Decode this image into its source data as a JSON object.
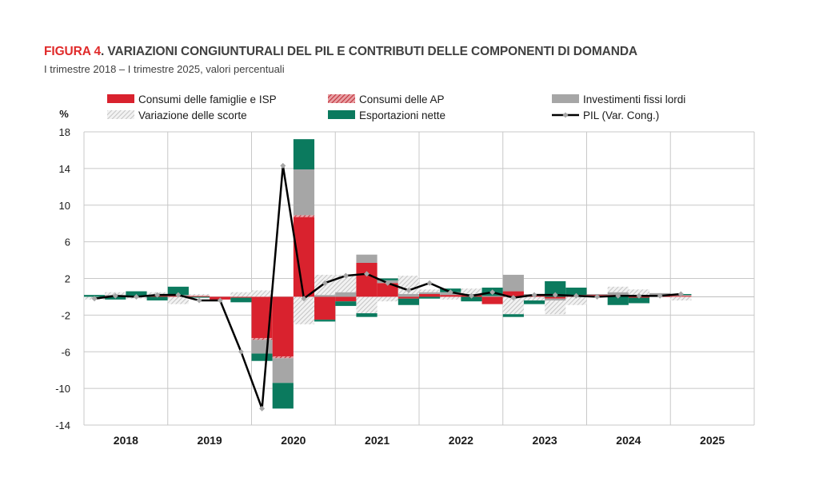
{
  "figure": {
    "label": "FIGURA 4",
    "title": ". VARIAZIONI CONGIUNTURALI DEL PIL E CONTRIBUTI DELLE COMPONENTI DI DOMANDA",
    "subtitle": "I trimestre 2018 – I trimestre 2025, valori percentuali"
  },
  "colors": {
    "title_label": "#e02a2a",
    "consumi_famiglie": "#d9222e",
    "consumi_ap": "#c0303a",
    "investimenti": "#a6a6a6",
    "scorte": "#d0d0d0",
    "esportazioni": "#0b7a5e",
    "pil": "#000000",
    "pil_marker": "#a6a6a6",
    "grid": "#c8c8c8"
  },
  "chart_data": {
    "type": "bar",
    "stacked": true,
    "ylabel": "%",
    "ylim": [
      -14,
      18
    ],
    "yticks": [
      18,
      14,
      10,
      6,
      2,
      -2,
      -6,
      -10,
      -14
    ],
    "grid": true,
    "legend_position": "top",
    "year_labels": [
      "2018",
      "2019",
      "2020",
      "2021",
      "2022",
      "2023",
      "2024",
      "2025"
    ],
    "quarters_per_year": 4,
    "series": [
      {
        "name": "Consumi delle famiglie e ISP",
        "kind": "bar",
        "pattern": "solid",
        "values": [
          0.0,
          0.1,
          0.1,
          0.1,
          0.1,
          0.1,
          -0.3,
          -0.1,
          -4.5,
          -6.5,
          8.7,
          -2.5,
          -0.5,
          3.7,
          1.5,
          -0.2,
          0.3,
          0.2,
          0.2,
          -0.8,
          0.6,
          0.1,
          -0.2,
          0.2,
          0.2,
          0.2,
          -0.1,
          0.2,
          0.1
        ]
      },
      {
        "name": "Consumi delle AP",
        "kind": "bar",
        "pattern": "hatched",
        "values": [
          0.0,
          0.0,
          0.0,
          0.0,
          0.0,
          0.0,
          0.0,
          0.0,
          -0.2,
          -0.2,
          0.2,
          0.0,
          0.0,
          0.0,
          0.0,
          0.0,
          0.0,
          0.0,
          0.0,
          0.0,
          0.0,
          0.0,
          0.0,
          0.0,
          0.0,
          0.0,
          0.0,
          0.0,
          0.0
        ]
      },
      {
        "name": "Investimenti fissi lordi",
        "kind": "bar",
        "pattern": "solid",
        "values": [
          0.0,
          0.1,
          0.0,
          0.1,
          0.1,
          0.0,
          0.0,
          0.0,
          -1.5,
          -2.7,
          5.0,
          0.2,
          0.5,
          0.9,
          0.3,
          0.3,
          0.2,
          0.3,
          0.1,
          0.1,
          1.8,
          0.2,
          -0.2,
          0.0,
          0.1,
          0.3,
          0.2,
          0.2,
          0.1
        ]
      },
      {
        "name": "Variazione delle scorte",
        "kind": "bar",
        "pattern": "hatched",
        "values": [
          -0.3,
          0.3,
          -0.2,
          0.3,
          -0.8,
          0.2,
          0.0,
          0.5,
          0.7,
          0.0,
          -3.0,
          2.2,
          1.9,
          -1.8,
          -0.5,
          2.0,
          0.3,
          -0.3,
          0.6,
          0.0,
          -1.9,
          -0.4,
          -1.5,
          -0.9,
          0.0,
          0.6,
          0.6,
          0.0,
          -0.4
        ]
      },
      {
        "name": "Esportazioni nette",
        "kind": "bar",
        "pattern": "solid",
        "values": [
          0.2,
          -0.3,
          0.5,
          -0.4,
          0.9,
          -0.1,
          0.0,
          -0.5,
          -0.8,
          -2.8,
          3.3,
          -0.2,
          -0.5,
          -0.4,
          0.2,
          -0.7,
          -0.2,
          0.4,
          -0.5,
          0.9,
          -0.3,
          -0.4,
          1.7,
          0.8,
          0.0,
          -0.9,
          -0.6,
          0.0,
          0.1
        ]
      },
      {
        "name": "PIL (Var. Cong.)",
        "kind": "line",
        "values": [
          -0.2,
          0.1,
          0.0,
          0.2,
          0.2,
          -0.4,
          -0.4,
          -6.0,
          -12.2,
          14.3,
          -0.2,
          1.5,
          2.3,
          2.5,
          1.5,
          0.7,
          1.5,
          0.5,
          0.1,
          0.5,
          -0.1,
          0.2,
          0.2,
          0.1,
          0.0,
          0.1,
          0.1,
          0.1,
          0.3
        ]
      }
    ]
  }
}
